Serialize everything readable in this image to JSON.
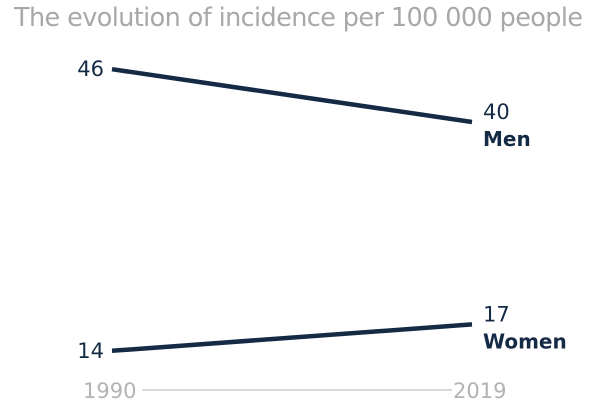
{
  "chart_data": {
    "type": "line",
    "title": "The evolution of incidence per 100 000 people",
    "x": [
      "1990",
      "2019"
    ],
    "series": [
      {
        "name": "Men",
        "values": [
          46,
          40
        ]
      },
      {
        "name": "Women",
        "values": [
          14,
          17
        ]
      }
    ],
    "ylim": [
      10,
      50
    ],
    "grid": false,
    "line_color": "#152a45",
    "axis_color": "#b3b3b3",
    "title_color": "#a8a8a8"
  }
}
